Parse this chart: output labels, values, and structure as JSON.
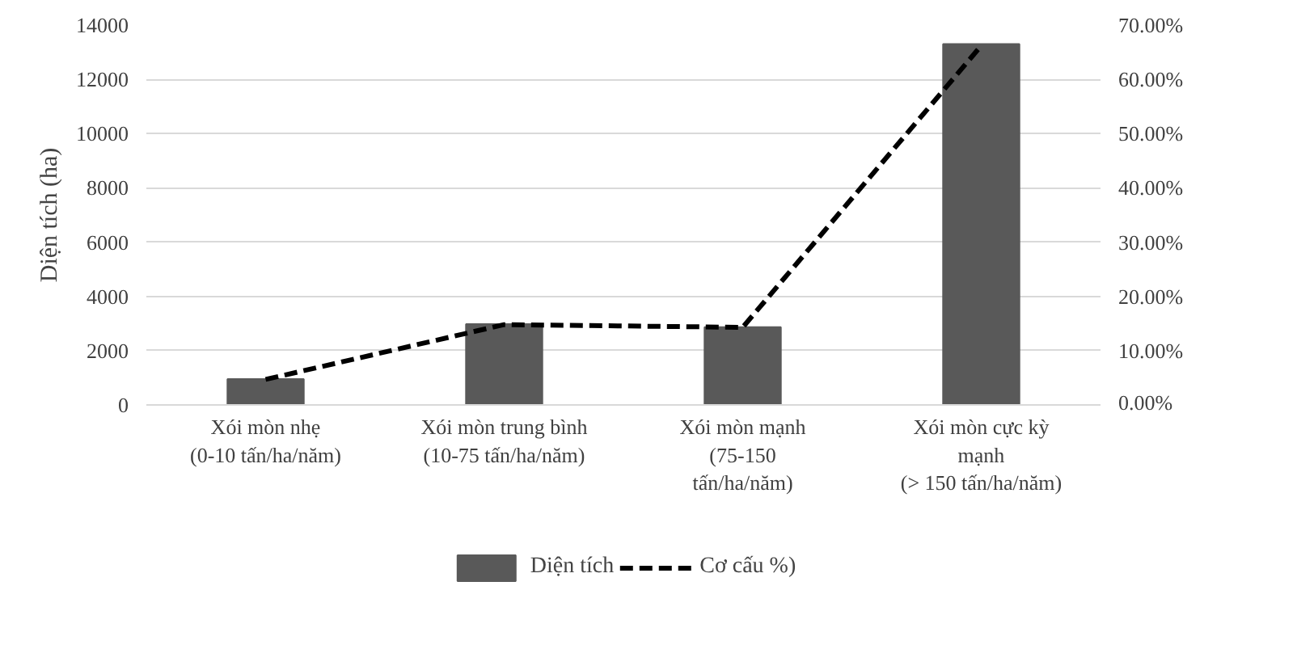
{
  "chart_data": {
    "type": "bar",
    "ylabel": "Diện tích (ha)",
    "categories": [
      "Xói mòn nhẹ\n(0-10 tấn/ha/năm)",
      "Xói mòn trung bình\n(10-75 tấn/ha/năm)",
      "Xói mòn mạnh\n(75-150\ntấn/ha/năm)",
      "Xói mòn cực kỳ\nmạnh\n(> 150 tấn/ha/năm)"
    ],
    "series": [
      {
        "name": "Diện tích",
        "color": "#595959",
        "values": [
          950,
          2980,
          2870,
          13300
        ]
      },
      {
        "name": "Cơ cấu %)",
        "type": "line",
        "axis": "y2",
        "color": "#000000",
        "line_style": "dashed",
        "values": [
          4.7,
          14.8,
          14.3,
          66.2
        ]
      }
    ],
    "ylim": [
      0,
      14000
    ],
    "yticks": [
      0,
      2000,
      4000,
      6000,
      8000,
      10000,
      12000,
      14000
    ],
    "y2lim": [
      0,
      70
    ],
    "y2ticks": [
      {
        "value": 0,
        "label": "0.00%"
      },
      {
        "value": 10,
        "label": "10.00%"
      },
      {
        "value": 20,
        "label": "20.00%"
      },
      {
        "value": 30,
        "label": "30.00%"
      },
      {
        "value": 40,
        "label": "40.00%"
      },
      {
        "value": 50,
        "label": "50.00%"
      },
      {
        "value": 60,
        "label": "60.00%"
      },
      {
        "value": 70,
        "label": "70.00%"
      }
    ],
    "grid": "y",
    "legend": "bottom"
  }
}
